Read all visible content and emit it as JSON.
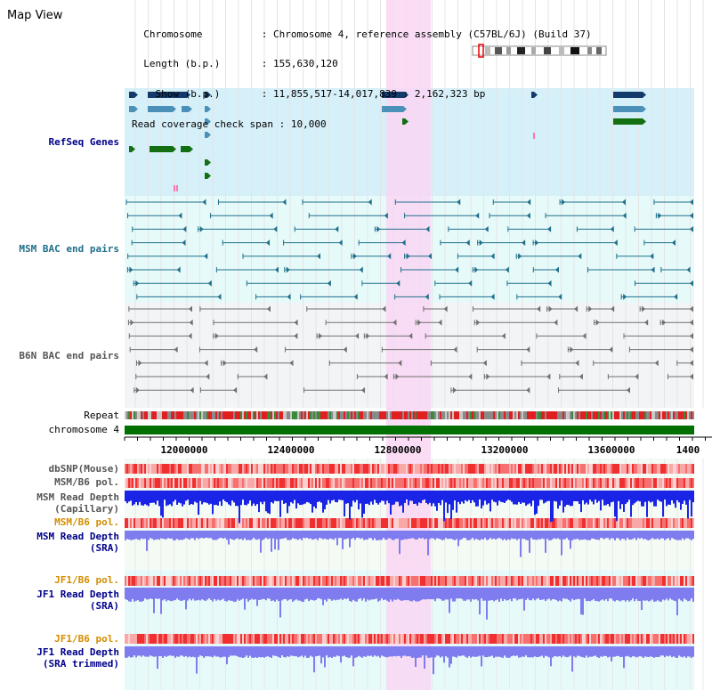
{
  "title": "Map View",
  "info": [
    {
      "key": "Chromosome          ",
      "value": "Chromosome 4, reference assembly (C57BL/6J) (Build 37)"
    },
    {
      "key": "Length (b.p.)       ",
      "value": "155,630,120"
    },
    {
      "key": "  Show (b.p.)       ",
      "value": "11,855,517-14,017,839 : 2,162,323 bp"
    },
    {
      "key": "Read coverage check span",
      "value": "10,000"
    }
  ],
  "tracks": {
    "refseq": "RefSeq Genes",
    "msm_bac": "MSM BAC end pairs",
    "b6n_bac": "B6N BAC end pairs",
    "repeat": "Repeat",
    "chromosome": "chromosome 4",
    "dbsnp": "dbSNP(Mouse)",
    "msm_b6_pol_1": "MSM/B6 pol.",
    "msm_depth_cap_1": "MSM Read Depth",
    "msm_depth_cap_2": "(Capillary)",
    "msm_b6_pol_2": "MSM/B6 pol.",
    "msm_depth_sra_1": "MSM Read Depth",
    "msm_depth_sra_2": "(SRA)",
    "jf1_b6_pol_1": "JF1/B6 pol.",
    "jf1_depth_sra_1": "JF1 Read Depth",
    "jf1_depth_sra_2": "(SRA)",
    "jf1_b6_pol_2": "JF1/B6 pol.",
    "jf1_depth_trim_1": "JF1 Read Depth",
    "jf1_depth_trim_2": "(SRA trimmed)"
  },
  "axis": {
    "ticks": [
      "12000000",
      "12400000",
      "12800000",
      "13200000",
      "13600000",
      "1400"
    ]
  },
  "colors": {
    "refseq_bg": "#d6f0fa",
    "msm_bg": "#e6fafa",
    "b6n_bg": "#f2f4f6",
    "highlight": "#f9d6f3",
    "chromosome": "#007000",
    "gene_dark": "#133a6b",
    "gene_mid": "#4a90b8",
    "gene_green": "#127012",
    "msm_pair": "#1f6f8b",
    "b6n_pair": "#707070",
    "depth_blue": "#1a24e6",
    "depth_lavender": "#7f7cf0",
    "label_blue": "#00008b",
    "label_orange": "#d38d00"
  }
}
